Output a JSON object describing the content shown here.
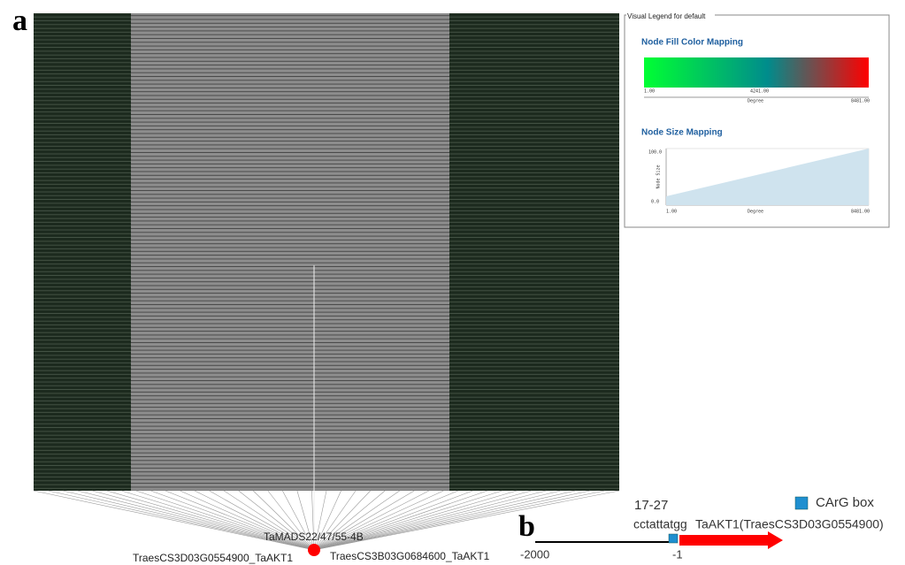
{
  "panel_labels": [
    "a",
    "b"
  ],
  "legend": {
    "title": "Visual Legend for default",
    "fill_title": "Node Fill Color Mapping",
    "fill_axis": {
      "min": "1.00",
      "mid": "4241.00",
      "max": "8481.00",
      "label": "Degree"
    },
    "size_title": "Node Size Mapping",
    "size_axis": {
      "ymax": "100.0",
      "ymin": "0.0",
      "ylabel": "Node Size",
      "xmin": "1.00",
      "xmax": "8481.00",
      "xlabel": "Degree"
    }
  },
  "network": {
    "hub": "TaMADS22/47/55-4B",
    "left_target": "TraesCS3D03G0554900_TaAKT1",
    "right_target": "TraesCS3B03G0684600_TaAKT1"
  },
  "promoter": {
    "position": "17-27",
    "sequence": "cctattatgg",
    "gene": "TaAKT1(TraesCS3D03G0554900)",
    "start": "-2000",
    "end": "-1",
    "legend": "CArG box"
  }
}
